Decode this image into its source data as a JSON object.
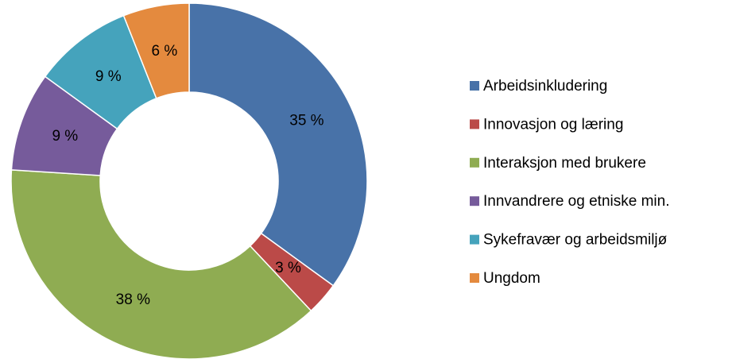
{
  "chart_data": {
    "type": "donut",
    "categories": [
      "Arbeidsinkludering",
      "Innovasjon og læring",
      "Interaksjon med brukere",
      "Innvandrere og etniske min.",
      "Sykefravær og arbeidsmiljø",
      "Ungdom"
    ],
    "values": [
      35,
      3,
      38,
      9,
      9,
      6
    ],
    "value_labels": [
      "35 %",
      "3 %",
      "38 %",
      "9 %",
      "9 %",
      "6 %"
    ],
    "colors": [
      "#4872a8",
      "#bb4a48",
      "#8fac52",
      "#765b9b",
      "#45a3bc",
      "#e48a3e"
    ],
    "legend": "right"
  }
}
